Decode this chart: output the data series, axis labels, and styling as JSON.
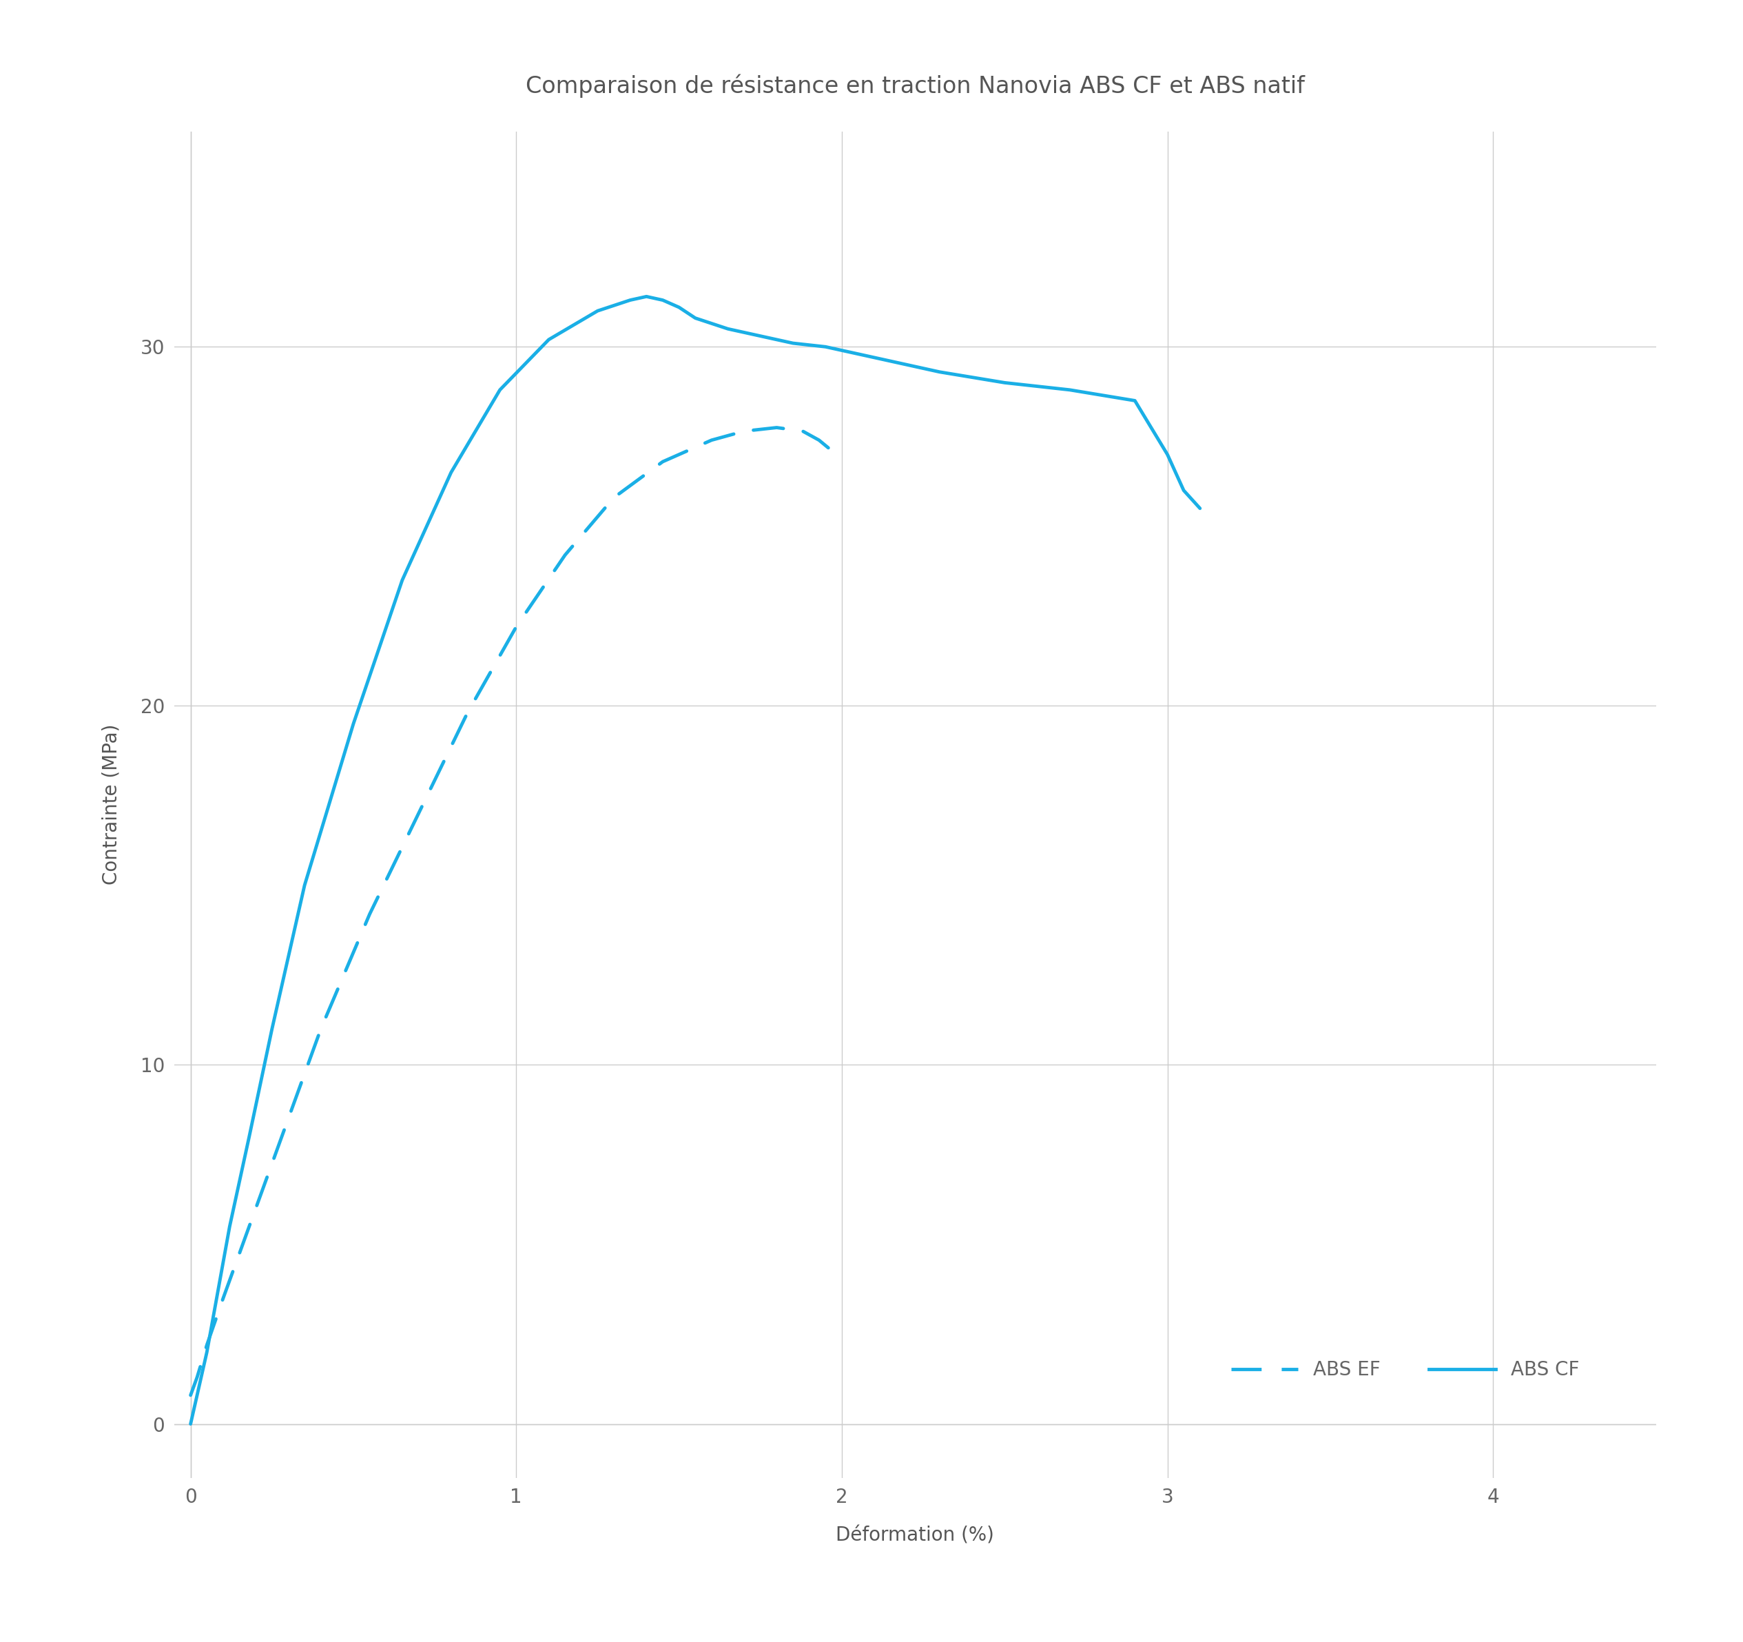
{
  "title": "Comparaison de résistance en traction Nanovia ABS CF et ABS natif",
  "xlabel": "Déformation (%)",
  "ylabel": "Contrainte (MPa)",
  "line_color": "#1AAFE6",
  "background_color": "#ffffff",
  "xlim": [
    -0.05,
    4.5
  ],
  "ylim": [
    -1.5,
    36
  ],
  "xticks": [
    0,
    1,
    2,
    3,
    4
  ],
  "yticks": [
    0,
    10,
    20,
    30
  ],
  "abs_cf_x": [
    0.0,
    0.02,
    0.05,
    0.08,
    0.12,
    0.18,
    0.25,
    0.35,
    0.5,
    0.65,
    0.8,
    0.95,
    1.1,
    1.25,
    1.35,
    1.4,
    1.45,
    1.5,
    1.55,
    1.65,
    1.75,
    1.85,
    1.95,
    2.05,
    2.15,
    2.3,
    2.5,
    2.7,
    2.9,
    3.0,
    3.05,
    3.1
  ],
  "abs_cf_y": [
    0.0,
    0.8,
    2.0,
    3.5,
    5.5,
    8.0,
    11.0,
    15.0,
    19.5,
    23.5,
    26.5,
    28.8,
    30.2,
    31.0,
    31.3,
    31.4,
    31.3,
    31.1,
    30.8,
    30.5,
    30.3,
    30.1,
    30.0,
    29.8,
    29.6,
    29.3,
    29.0,
    28.8,
    28.5,
    27.0,
    26.0,
    25.5
  ],
  "abs_ef_x": [
    0.0,
    0.02,
    0.05,
    0.1,
    0.18,
    0.28,
    0.4,
    0.55,
    0.7,
    0.85,
    1.0,
    1.15,
    1.3,
    1.45,
    1.6,
    1.7,
    1.8,
    1.88,
    1.93,
    1.97
  ],
  "abs_ef_y": [
    0.8,
    1.3,
    2.2,
    3.5,
    5.5,
    8.0,
    11.0,
    14.2,
    17.0,
    19.8,
    22.2,
    24.2,
    25.8,
    26.8,
    27.4,
    27.65,
    27.75,
    27.65,
    27.4,
    27.1
  ],
  "title_fontsize": 24,
  "label_fontsize": 20,
  "tick_fontsize": 20,
  "legend_fontsize": 20,
  "line_width": 3.5,
  "title_color": "#555555",
  "tick_color": "#666666",
  "label_color": "#555555",
  "grid_color": "#cccccc",
  "legend_label_cf": "ABS CF",
  "legend_label_ef": "ABS EF"
}
